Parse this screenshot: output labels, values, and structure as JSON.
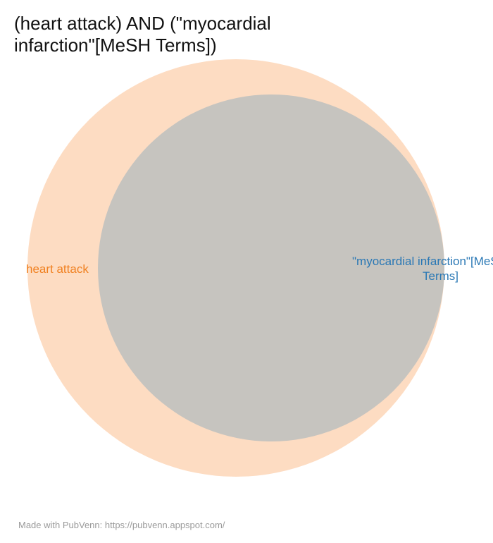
{
  "title": "(heart attack) AND (\"myocardial infarction\"[MeSH Terms])",
  "sets": [
    {
      "name": "heart attack",
      "label": "heart attack",
      "fill": "#fddcc2",
      "label_color": "#f08020"
    },
    {
      "name": "myocardial infarction MeSH",
      "label_line1": "\"myocardial infarction\"[MeSH",
      "label_line2": "Terms]",
      "fill": "#c6c4bf",
      "label_color": "#2a78b5"
    }
  ],
  "footer": "Made with PubVenn: https://pubvenn.appspot.com/"
}
